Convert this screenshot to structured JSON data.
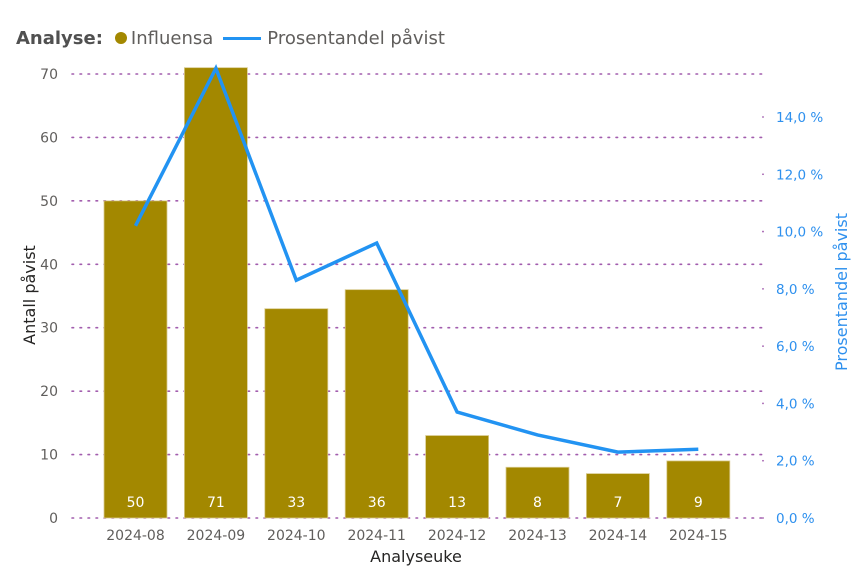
{
  "legend": {
    "title": "Analyse:",
    "items": [
      {
        "label": "Influensa",
        "type": "bar",
        "color": "#A38800"
      },
      {
        "label": "Prosentandel påvist",
        "type": "line",
        "color": "#2293F2"
      }
    ]
  },
  "colors": {
    "bar": "#A38800",
    "line": "#2293F2",
    "grid": "#A25DAE",
    "axis_text": "#605E5C",
    "right_axis_text": "#2E90EE"
  },
  "chart_data": {
    "type": "bar",
    "title": "",
    "xlabel": "Analyseuke",
    "ylabel": "Antall påvist",
    "y2label": "Prosentandel påvist",
    "categories": [
      "2024-08",
      "2024-09",
      "2024-10",
      "2024-11",
      "2024-12",
      "2024-13",
      "2024-14",
      "2024-15"
    ],
    "series": [
      {
        "name": "Influensa",
        "type": "bar",
        "axis": "left",
        "values": [
          50,
          71,
          33,
          36,
          13,
          8,
          7,
          9
        ]
      },
      {
        "name": "Prosentandel påvist",
        "type": "line",
        "axis": "right",
        "unit": "%",
        "values": [
          10.2,
          15.7,
          8.3,
          9.6,
          3.7,
          2.9,
          2.3,
          2.4
        ]
      }
    ],
    "ylim": [
      0,
      70
    ],
    "y_ticks": [
      "0",
      "10",
      "20",
      "30",
      "40",
      "50",
      "60",
      "70"
    ],
    "y2lim": [
      0,
      14
    ],
    "y2_ticks": [
      "0,0 %",
      "2,0 %",
      "4,0 %",
      "6,0 %",
      "8,0 %",
      "10,0 %",
      "12,0 %",
      "14,0 %"
    ],
    "data_labels": [
      "50",
      "71",
      "33",
      "36",
      "13",
      "8",
      "7",
      "9"
    ],
    "grid": true,
    "legend_position": "top-left"
  }
}
